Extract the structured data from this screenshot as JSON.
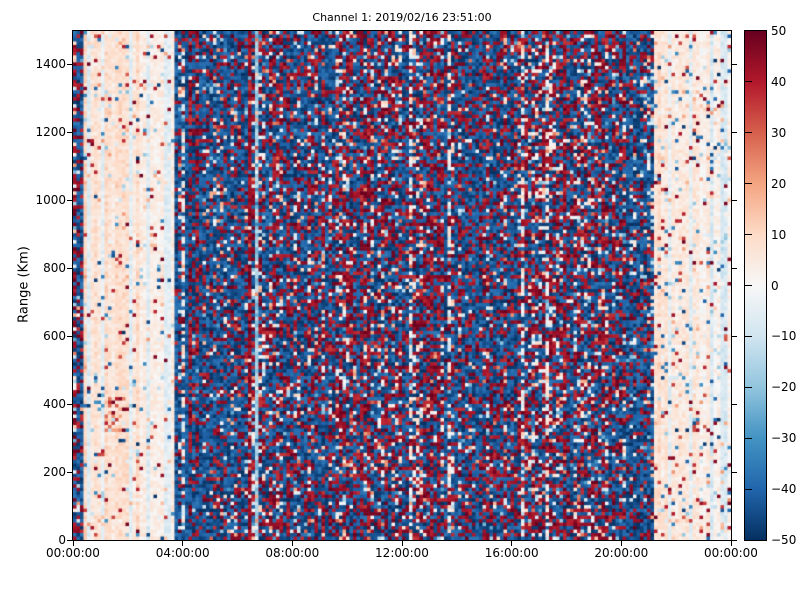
{
  "window": {
    "background": "#ffffff"
  },
  "chart_data": {
    "type": "heatmap",
    "title": "Channel 1: 2019/02/16 23:51:00",
    "xlabel": "",
    "ylabel": "Range (Km)",
    "x_tick_labels": [
      "00:00:00",
      "04:00:00",
      "08:00:00",
      "12:00:00",
      "16:00:00",
      "20:00:00",
      "00:00:00"
    ],
    "x_range_hours": [
      0,
      24
    ],
    "y_tick_values": [
      0,
      200,
      400,
      600,
      800,
      1000,
      1200,
      1400
    ],
    "y_tick_labels": [
      "0",
      "200",
      "400",
      "600",
      "800",
      "1000",
      "1200",
      "1400"
    ],
    "y_range_km": [
      0,
      1500
    ],
    "grid_resolution": {
      "cols": 188,
      "rows": 146
    },
    "noise_seed": 20190216,
    "colorbar": {
      "min": -50,
      "max": 50,
      "tick_values": [
        50,
        40,
        30,
        20,
        10,
        0,
        -10,
        -20,
        -30,
        -40,
        -50
      ],
      "tick_labels": [
        "50",
        "40",
        "30",
        "20",
        "10",
        "0",
        "−10",
        "−20",
        "−30",
        "−40",
        "−50"
      ],
      "colormap": "RdBu_r",
      "stops": [
        [
          0.0,
          "#053061"
        ],
        [
          0.1,
          "#2166ac"
        ],
        [
          0.2,
          "#4393c3"
        ],
        [
          0.3,
          "#92c5de"
        ],
        [
          0.4,
          "#d1e5f0"
        ],
        [
          0.5,
          "#f7f7f7"
        ],
        [
          0.6,
          "#fddbc7"
        ],
        [
          0.7,
          "#f4a582"
        ],
        [
          0.8,
          "#d6604d"
        ],
        [
          0.9,
          "#b2182b"
        ],
        [
          1.0,
          "#67001f"
        ]
      ]
    },
    "regions": [
      {
        "name": "midnight-edge-noise",
        "from_hour": 0.0,
        "to_hour": 0.4,
        "kind": "dense"
      },
      {
        "name": "early-morning-quiet",
        "from_hour": 0.4,
        "to_hour": 3.75,
        "kind": "pale",
        "speck_mult": 1.0,
        "zones": [
          {
            "to_hour": 2.45,
            "base_min": 4,
            "base_max": 11
          },
          {
            "to_hour": 3.75,
            "base_min": 1,
            "base_max": 5
          }
        ]
      },
      {
        "name": "daytime-dense-noise",
        "from_hour": 3.75,
        "to_hour": 21.2,
        "kind": "dense"
      },
      {
        "name": "late-evening-quiet",
        "from_hour": 21.2,
        "to_hour": 24.0,
        "kind": "pale",
        "speck_mult": 1.6,
        "zones": [
          {
            "to_hour": 22.9,
            "base_min": 4,
            "base_max": 10
          },
          {
            "to_hour": 24.0,
            "base_min": 1,
            "base_max": 6
          }
        ]
      }
    ],
    "dense_params": {
      "p_blue": 0.42,
      "p_red": 0.38,
      "p_mid": 0.12,
      "p_light": 0.08
    },
    "pale_stripes": [
      {
        "hour": 0.55,
        "width_h": 0.15,
        "value": -7
      },
      {
        "hour": 1.05,
        "width_h": 0.12,
        "value": -5
      },
      {
        "hour": 2.05,
        "width_h": 0.12,
        "value": -6
      },
      {
        "hour": 2.75,
        "width_h": 0.2,
        "value": -7
      },
      {
        "hour": 3.45,
        "width_h": 0.15,
        "value": -6
      },
      {
        "hour": 21.75,
        "width_h": 0.1,
        "value": -5
      },
      {
        "hour": 22.55,
        "width_h": 0.12,
        "value": -6
      },
      {
        "hour": 23.3,
        "width_h": 0.18,
        "value": -8
      },
      {
        "hour": 23.75,
        "width_h": 0.16,
        "value": -8
      }
    ],
    "dense_bands": [
      {
        "from_hour": 3.75,
        "to_hour": 6.4,
        "kind": "blue_boost",
        "amount": 0.18
      },
      {
        "from_hour": 7.9,
        "to_hour": 8.6,
        "kind": "blue_boost",
        "amount": 0.1
      },
      {
        "from_hour": 20.2,
        "to_hour": 21.2,
        "kind": "blue_boost",
        "amount": 0.22
      },
      {
        "from_hour": 6.42,
        "to_hour": 6.56,
        "kind": "red_line"
      },
      {
        "from_hour": 6.58,
        "to_hour": 6.72,
        "kind": "light_blue_line"
      }
    ],
    "pale_features": [
      {
        "name": "red-blob",
        "hour": 1.55,
        "range_km": 370,
        "w_h": 0.7,
        "h_km": 100,
        "p": 0.5,
        "v_min": 15,
        "v_max": 50
      },
      {
        "name": "blue-dashes",
        "hour": 1.0,
        "range_km": 430,
        "w_h": 0.35,
        "h_km": 100,
        "p": 0.4,
        "v_min": -50,
        "v_max": -20
      }
    ],
    "layout_hints": {
      "grid": false,
      "legend": "colorbar-right",
      "background": "white"
    }
  }
}
